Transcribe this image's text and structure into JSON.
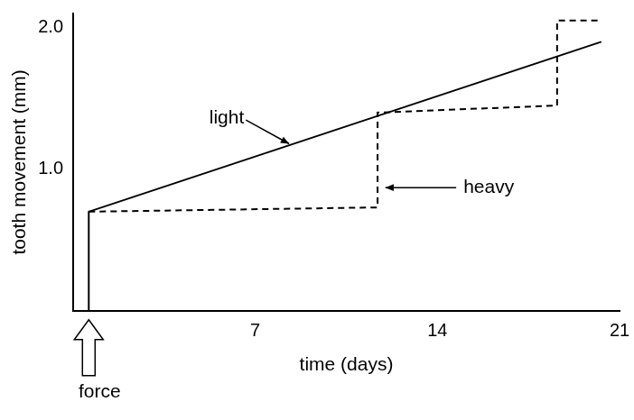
{
  "chart_data": {
    "type": "line",
    "x_label": "time (days)",
    "y_label": "tooth movement (mm)",
    "annotations": [
      "force"
    ],
    "series": [
      {
        "name": "light",
        "color": "#000000",
        "line_style": "solid",
        "x": [
          0.6,
          0.6,
          20.3
        ],
        "values": [
          0,
          0.7,
          1.9
        ]
      },
      {
        "name": "heavy",
        "color": "#000000",
        "line_style": "dashed",
        "x": [
          0.6,
          11.7,
          11.7,
          18.6,
          18.6,
          20.3
        ],
        "values": [
          0.7,
          0.73,
          1.4,
          1.45,
          2.05,
          2.05
        ]
      }
    ],
    "xlim": [
      0,
      21
    ],
    "xticks": [
      7,
      14,
      21
    ],
    "ylim": [
      0,
      2.1
    ],
    "yticks": [
      {
        "value": 1,
        "label": "1.0"
      },
      {
        "value": 2,
        "label": "2.0"
      }
    ],
    "grid": false
  }
}
